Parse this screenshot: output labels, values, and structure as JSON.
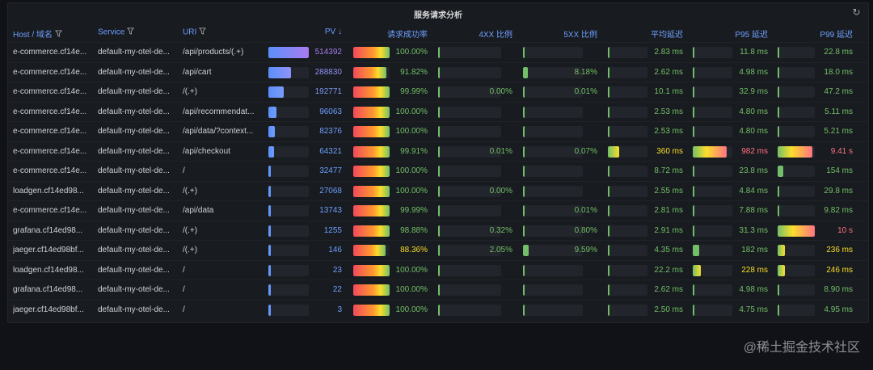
{
  "panel": {
    "title": "服务请求分析",
    "refresh_icon": "refresh-icon"
  },
  "columns": [
    {
      "key": "host",
      "label": "Host / 域名",
      "filter": true
    },
    {
      "key": "service",
      "label": "Service",
      "filter": true
    },
    {
      "key": "uri",
      "label": "URI",
      "filter": true
    },
    {
      "key": "pv",
      "label": "PV ↓",
      "filter": false
    },
    {
      "key": "success",
      "label": "请求成功率",
      "filter": false
    },
    {
      "key": "x4",
      "label": "4XX 比例",
      "filter": false
    },
    {
      "key": "x5",
      "label": "5XX 比例",
      "filter": false
    },
    {
      "key": "avg",
      "label": "平均延迟",
      "filter": false
    },
    {
      "key": "p95",
      "label": "P95 延迟",
      "filter": false
    },
    {
      "key": "p99",
      "label": "P99 延迟",
      "filter": false
    }
  ],
  "rows": [
    {
      "host": "e-commerce.cf14e...",
      "service": "default-my-otel-de...",
      "uri": "/api/products/(.+)",
      "pv": "514392",
      "pv_frac": 1.0,
      "pv_color": "#a97cf0",
      "success": "100.00%",
      "success_frac": 1.0,
      "x4": "",
      "x4_frac": 0,
      "x5": "",
      "x5_frac": 0,
      "avg": "2.83 ms",
      "avg_frac": 0.0,
      "avg_color": "#73bf69",
      "p95": "11.8 ms",
      "p95_frac": 0.0,
      "p95_color": "#73bf69",
      "p99": "22.8 ms",
      "p99_frac": 0.0,
      "p99_color": "#73bf69"
    },
    {
      "host": "e-commerce.cf14e...",
      "service": "default-my-otel-de...",
      "uri": "/api/cart",
      "pv": "288830",
      "pv_frac": 0.56,
      "pv_color": "#8f92f6",
      "success": "91.82%",
      "success_frac": 0.92,
      "x4": "",
      "x4_frac": 0,
      "x5": "8.18%",
      "x5_frac": 0.08,
      "avg": "2.62 ms",
      "avg_frac": 0.0,
      "avg_color": "#73bf69",
      "p95": "4.98 ms",
      "p95_frac": 0.0,
      "p95_color": "#73bf69",
      "p99": "18.0 ms",
      "p99_frac": 0.0,
      "p99_color": "#73bf69"
    },
    {
      "host": "e-commerce.cf14e...",
      "service": "default-my-otel-de...",
      "uri": "/(.+)",
      "pv": "192771",
      "pv_frac": 0.37,
      "pv_color": "#7d9bf7",
      "success": "99.99%",
      "success_frac": 1.0,
      "x4": "0.00%",
      "x4_frac": 0,
      "x5": "0.01%",
      "x5_frac": 0,
      "avg": "10.1 ms",
      "avg_frac": 0.0,
      "avg_color": "#73bf69",
      "p95": "32.9 ms",
      "p95_frac": 0.0,
      "p95_color": "#73bf69",
      "p99": "47.2 ms",
      "p99_frac": 0.0,
      "p99_color": "#73bf69"
    },
    {
      "host": "e-commerce.cf14e...",
      "service": "default-my-otel-de...",
      "uri": "/api/recommendat...",
      "pv": "96063",
      "pv_frac": 0.19,
      "pv_color": "#6e9fff",
      "success": "100.00%",
      "success_frac": 1.0,
      "x4": "",
      "x4_frac": 0,
      "x5": "",
      "x5_frac": 0,
      "avg": "2.53 ms",
      "avg_frac": 0.0,
      "avg_color": "#73bf69",
      "p95": "4.80 ms",
      "p95_frac": 0.0,
      "p95_color": "#73bf69",
      "p99": "5.11 ms",
      "p99_frac": 0.0,
      "p99_color": "#73bf69"
    },
    {
      "host": "e-commerce.cf14e...",
      "service": "default-my-otel-de...",
      "uri": "/api/data/?context...",
      "pv": "82376",
      "pv_frac": 0.16,
      "pv_color": "#6e9fff",
      "success": "100.00%",
      "success_frac": 1.0,
      "x4": "",
      "x4_frac": 0,
      "x5": "",
      "x5_frac": 0,
      "avg": "2.53 ms",
      "avg_frac": 0.0,
      "avg_color": "#73bf69",
      "p95": "4.80 ms",
      "p95_frac": 0.0,
      "p95_color": "#73bf69",
      "p99": "5.21 ms",
      "p99_frac": 0.0,
      "p99_color": "#73bf69"
    },
    {
      "host": "e-commerce.cf14e...",
      "service": "default-my-otel-de...",
      "uri": "/api/checkout",
      "pv": "64321",
      "pv_frac": 0.13,
      "pv_color": "#6e9fff",
      "success": "99.91%",
      "success_frac": 1.0,
      "x4": "0.01%",
      "x4_frac": 0,
      "x5": "0.07%",
      "x5_frac": 0,
      "avg": "360 ms",
      "avg_frac": 0.28,
      "avg_color": "#fade2a",
      "p95": "982 ms",
      "p95_frac": 0.85,
      "p95_color": "#ff7383",
      "p99": "9.41 s",
      "p99_frac": 0.94,
      "p99_color": "#ff7383"
    },
    {
      "host": "e-commerce.cf14e...",
      "service": "default-my-otel-de...",
      "uri": "/",
      "pv": "32477",
      "pv_frac": 0.06,
      "pv_color": "#6e9fff",
      "success": "100.00%",
      "success_frac": 1.0,
      "x4": "",
      "x4_frac": 0,
      "x5": "",
      "x5_frac": 0,
      "avg": "8.72 ms",
      "avg_frac": 0.0,
      "avg_color": "#73bf69",
      "p95": "23.8 ms",
      "p95_frac": 0.0,
      "p95_color": "#73bf69",
      "p99": "154 ms",
      "p99_frac": 0.16,
      "p99_color": "#73bf69"
    },
    {
      "host": "loadgen.cf14ed98...",
      "service": "default-my-otel-de...",
      "uri": "/(.+)",
      "pv": "27068",
      "pv_frac": 0.05,
      "pv_color": "#6e9fff",
      "success": "100.00%",
      "success_frac": 1.0,
      "x4": "0.00%",
      "x4_frac": 0,
      "x5": "",
      "x5_frac": 0,
      "avg": "2.55 ms",
      "avg_frac": 0.0,
      "avg_color": "#73bf69",
      "p95": "4.84 ms",
      "p95_frac": 0.0,
      "p95_color": "#73bf69",
      "p99": "29.8 ms",
      "p99_frac": 0.0,
      "p99_color": "#73bf69"
    },
    {
      "host": "e-commerce.cf14e...",
      "service": "default-my-otel-de...",
      "uri": "/api/data",
      "pv": "13743",
      "pv_frac": 0.03,
      "pv_color": "#6e9fff",
      "success": "99.99%",
      "success_frac": 1.0,
      "x4": "",
      "x4_frac": 0,
      "x5": "0.01%",
      "x5_frac": 0,
      "avg": "2.81 ms",
      "avg_frac": 0.0,
      "avg_color": "#73bf69",
      "p95": "7.88 ms",
      "p95_frac": 0.0,
      "p95_color": "#73bf69",
      "p99": "9.82 ms",
      "p99_frac": 0.0,
      "p99_color": "#73bf69"
    },
    {
      "host": "grafana.cf14ed98...",
      "service": "default-my-otel-de...",
      "uri": "/(.+)",
      "pv": "1255",
      "pv_frac": 0.0,
      "pv_color": "#6e9fff",
      "success": "98.88%",
      "success_frac": 0.99,
      "x4": "0.32%",
      "x4_frac": 0,
      "x5": "0.80%",
      "x5_frac": 0,
      "avg": "2.91 ms",
      "avg_frac": 0.0,
      "avg_color": "#73bf69",
      "p95": "31.3 ms",
      "p95_frac": 0.0,
      "p95_color": "#73bf69",
      "p99": "10 s",
      "p99_frac": 1.0,
      "p99_color": "#ff7383"
    },
    {
      "host": "jaeger.cf14ed98bf...",
      "service": "default-my-otel-de...",
      "uri": "/(.+)",
      "pv": "146",
      "pv_frac": 0.0,
      "pv_color": "#6e9fff",
      "success": "88.36%",
      "success_frac": 0.88,
      "x4": "2.05%",
      "x4_frac": 0.02,
      "x5": "9.59%",
      "x5_frac": 0.1,
      "avg": "4.35 ms",
      "avg_frac": 0.0,
      "avg_color": "#73bf69",
      "p95": "182 ms",
      "p95_frac": 0.16,
      "p95_color": "#73bf69",
      "p99": "236 ms",
      "p99_frac": 0.2,
      "p99_color": "#fade2a"
    },
    {
      "host": "loadgen.cf14ed98...",
      "service": "default-my-otel-de...",
      "uri": "/",
      "pv": "23",
      "pv_frac": 0.0,
      "pv_color": "#6e9fff",
      "success": "100.00%",
      "success_frac": 1.0,
      "x4": "",
      "x4_frac": 0,
      "x5": "",
      "x5_frac": 0,
      "avg": "22.2 ms",
      "avg_frac": 0.0,
      "avg_color": "#73bf69",
      "p95": "228 ms",
      "p95_frac": 0.2,
      "p95_color": "#fade2a",
      "p99": "246 ms",
      "p99_frac": 0.2,
      "p99_color": "#fade2a"
    },
    {
      "host": "grafana.cf14ed98...",
      "service": "default-my-otel-de...",
      "uri": "/",
      "pv": "22",
      "pv_frac": 0.0,
      "pv_color": "#6e9fff",
      "success": "100.00%",
      "success_frac": 1.0,
      "x4": "",
      "x4_frac": 0,
      "x5": "",
      "x5_frac": 0,
      "avg": "2.62 ms",
      "avg_frac": 0.0,
      "avg_color": "#73bf69",
      "p95": "4.98 ms",
      "p95_frac": 0.0,
      "p95_color": "#73bf69",
      "p99": "8.90 ms",
      "p99_frac": 0.0,
      "p99_color": "#73bf69"
    },
    {
      "host": "jaeger.cf14ed98bf...",
      "service": "default-my-otel-de...",
      "uri": "/",
      "pv": "3",
      "pv_frac": 0.0,
      "pv_color": "#6e9fff",
      "success": "100.00%",
      "success_frac": 1.0,
      "x4": "",
      "x4_frac": 0,
      "x5": "",
      "x5_frac": 0,
      "avg": "2.50 ms",
      "avg_frac": 0.0,
      "avg_color": "#73bf69",
      "p95": "4.75 ms",
      "p95_frac": 0.0,
      "p95_color": "#73bf69",
      "p99": "4.95 ms",
      "p99_frac": 0.0,
      "p99_color": "#73bf69"
    }
  ],
  "colors": {
    "header_text": "#6e9fff",
    "success_gradient": "#f2495c→#fade2a→#73bf69",
    "threshold_green": "#73bf69",
    "threshold_yellow": "#fade2a",
    "threshold_red": "#ff7383"
  },
  "watermark": "@稀土掘金技术社区"
}
